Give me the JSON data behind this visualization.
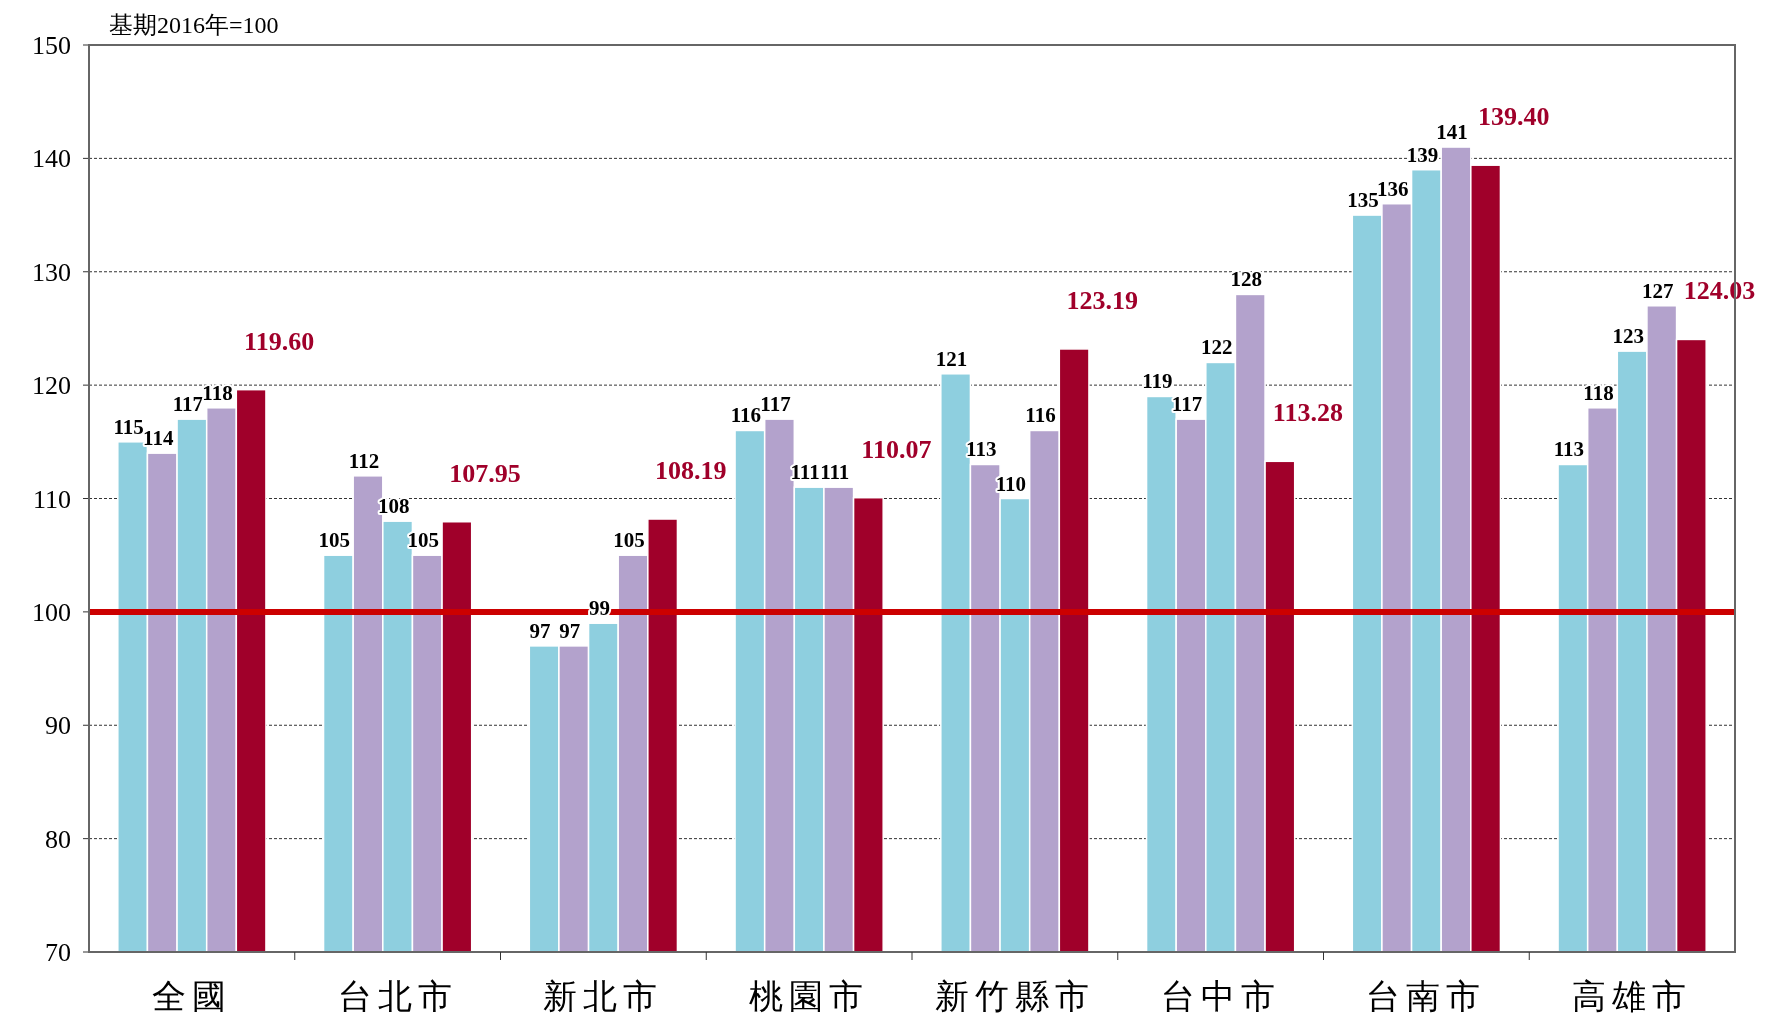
{
  "chart_data": {
    "type": "bar",
    "categories": [
      "全國",
      "台北市",
      "新北市",
      "桃園市",
      "新竹縣市",
      "台中市",
      "台南市",
      "高雄市"
    ],
    "series": [
      {
        "color": "#8ecfdf",
        "values": [
          115,
          105,
          97,
          116,
          121,
          119,
          135,
          113
        ],
        "value_labels": [
          "115",
          "105",
          "97",
          "116",
          "121",
          "119",
          "135",
          "113"
        ]
      },
      {
        "color": "#b3a2cc",
        "values": [
          114,
          112,
          97,
          117,
          113,
          117,
          136,
          118
        ],
        "value_labels": [
          "114",
          "112",
          "97",
          "117",
          "113",
          "117",
          "136",
          "118"
        ]
      },
      {
        "color": "#8ecfdf",
        "values": [
          117,
          108,
          99,
          111,
          110,
          122,
          139,
          123
        ],
        "value_labels": [
          "117",
          "108",
          "99",
          "111",
          "110",
          "122",
          "139",
          "123"
        ]
      },
      {
        "color": "#b3a2cc",
        "values": [
          118,
          105,
          105,
          111,
          116,
          128,
          141,
          127
        ],
        "value_labels": [
          "118",
          "105",
          "105",
          "111",
          "116",
          "128",
          "141",
          "127"
        ]
      },
      {
        "color": "#a0002a",
        "values": [
          119.6,
          107.95,
          108.19,
          110.07,
          123.19,
          113.28,
          139.4,
          124.03
        ],
        "value_labels": [
          "119.60",
          "107.95",
          "108.19",
          "110.07",
          "123.19",
          "113.28",
          "139.40",
          "124.03"
        ]
      }
    ],
    "ylim": [
      70,
      150
    ],
    "yticks": [
      70,
      80,
      90,
      100,
      110,
      120,
      130,
      140,
      150
    ],
    "grid": "y",
    "ref_lines": [
      {
        "axis": "y",
        "value": 100,
        "color": "#cc0000"
      }
    ],
    "annotations": [
      "基期2016年=100"
    ]
  }
}
